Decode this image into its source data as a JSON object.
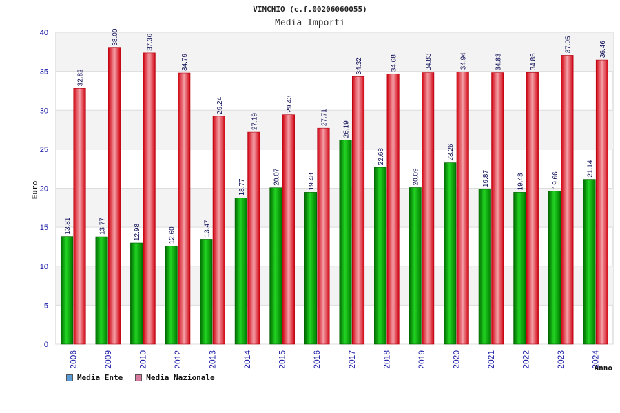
{
  "chart_data": {
    "type": "bar",
    "title": "VINCHIO (c.f.00206060055)",
    "subtitle": "Media Importi",
    "xlabel": "Anno",
    "ylabel": "Euro",
    "ylim": [
      0,
      40
    ],
    "yticks": [
      0,
      5,
      10,
      15,
      20,
      25,
      30,
      35,
      40
    ],
    "ytick_labels": [
      "0",
      "5",
      "10",
      "15",
      "20",
      "25",
      "30",
      "35",
      "40"
    ],
    "categories": [
      "2006",
      "2009",
      "2010",
      "2012",
      "2013",
      "2014",
      "2015",
      "2016",
      "2017",
      "2018",
      "2019",
      "2020",
      "2021",
      "2022",
      "2023",
      "2024"
    ],
    "series": [
      {
        "name": "Media Ente",
        "color": "#00b000",
        "legend_color": "#5b9bd5",
        "values": [
          13.81,
          13.77,
          12.98,
          12.6,
          13.47,
          18.77,
          20.07,
          19.48,
          26.19,
          22.68,
          20.09,
          23.26,
          19.87,
          19.48,
          19.66,
          21.14
        ],
        "labels": [
          "13.81",
          "13.77",
          "12.98",
          "12.60",
          "13.47",
          "18.77",
          "20.07",
          "19.48",
          "26.19",
          "22.68",
          "20.09",
          "23.26",
          "19.87",
          "19.48",
          "19.66",
          "21.14"
        ]
      },
      {
        "name": "Media Nazionale",
        "color": "#e8101c",
        "legend_color": "#d87aa0",
        "values": [
          32.82,
          38.0,
          37.36,
          34.79,
          29.24,
          27.19,
          29.43,
          27.71,
          34.32,
          34.68,
          34.83,
          34.94,
          34.83,
          34.85,
          37.05,
          36.46
        ],
        "labels": [
          "32.82",
          "38.00",
          "37.36",
          "34.79",
          "29.24",
          "27.19",
          "29.43",
          "27.71",
          "34.32",
          "34.68",
          "34.83",
          "34.94",
          "34.83",
          "34.85",
          "37.05",
          "36.46"
        ]
      }
    ],
    "grid": true,
    "legend_position": "bottom-left"
  }
}
